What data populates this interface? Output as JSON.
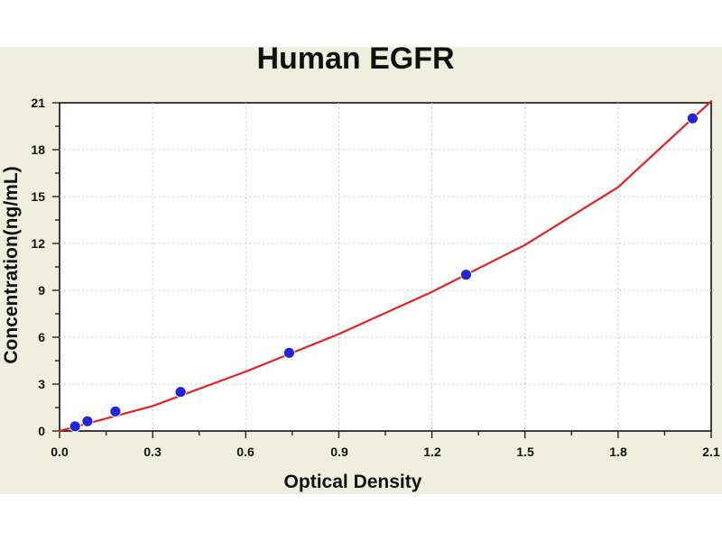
{
  "chart_data": {
    "type": "scatter",
    "title": "Human EGFR",
    "xlabel": "Optical Density",
    "ylabel": "Concentration(ng/mL)",
    "xlim": [
      0,
      2.1
    ],
    "ylim": [
      0,
      21
    ],
    "x_ticks": [
      "0.0",
      "0.3",
      "0.6",
      "0.9",
      "1.2",
      "1.5",
      "1.8",
      "2.1"
    ],
    "y_ticks": [
      "0",
      "3",
      "6",
      "9",
      "12",
      "15",
      "18",
      "21"
    ],
    "grid": true,
    "series": [
      {
        "type": "scatter",
        "color": "#2525d8",
        "x": [
          0.05,
          0.09,
          0.18,
          0.39,
          0.74,
          1.31,
          2.04
        ],
        "y": [
          0.3,
          0.625,
          1.25,
          2.5,
          5.0,
          10.0,
          20.0
        ]
      },
      {
        "type": "line",
        "color": "#e02222",
        "x": [
          0.0,
          0.3,
          0.6,
          0.9,
          1.2,
          1.5,
          1.8,
          2.1
        ],
        "y": [
          0.0,
          1.6,
          3.8,
          6.2,
          8.9,
          11.9,
          15.6,
          21.1
        ]
      }
    ]
  }
}
